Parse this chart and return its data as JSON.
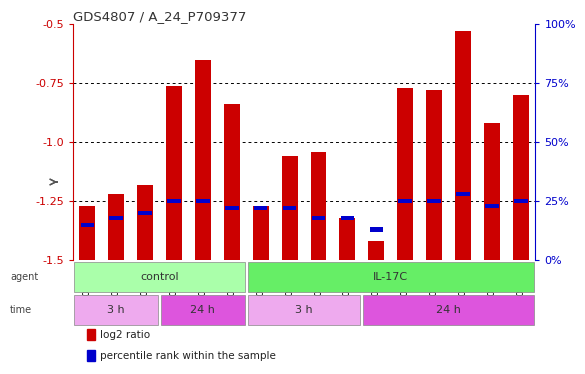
{
  "title": "GDS4807 / A_24_P709377",
  "samples": [
    "GSM808637",
    "GSM808642",
    "GSM808643",
    "GSM808634",
    "GSM808645",
    "GSM808646",
    "GSM808633",
    "GSM808638",
    "GSM808640",
    "GSM808641",
    "GSM808644",
    "GSM808635",
    "GSM808636",
    "GSM808639",
    "GSM808647",
    "GSM808648"
  ],
  "log2_ratio": [
    -1.27,
    -1.22,
    -1.18,
    -0.76,
    -0.65,
    -0.84,
    -1.27,
    -1.06,
    -1.04,
    -1.32,
    -1.42,
    -0.77,
    -0.78,
    -0.53,
    -0.92,
    -0.8
  ],
  "percentile": [
    15,
    18,
    20,
    25,
    25,
    22,
    22,
    22,
    18,
    18,
    13,
    25,
    25,
    28,
    23,
    25
  ],
  "ylim_left": [
    -1.5,
    -0.5
  ],
  "yticks_left": [
    -1.5,
    -1.25,
    -1.0,
    -0.75,
    -0.5
  ],
  "yticks_right_pct": [
    0,
    25,
    50,
    75,
    100
  ],
  "bar_color": "#cc0000",
  "marker_color": "#0000cc",
  "agent_groups": [
    {
      "label": "control",
      "start": 0,
      "end": 6,
      "color": "#aaffaa"
    },
    {
      "label": "IL-17C",
      "start": 6,
      "end": 16,
      "color": "#66ee66"
    }
  ],
  "time_groups": [
    {
      "label": "3 h",
      "start": 0,
      "end": 3,
      "color": "#eeaaee"
    },
    {
      "label": "24 h",
      "start": 3,
      "end": 6,
      "color": "#dd55dd"
    },
    {
      "label": "3 h",
      "start": 6,
      "end": 10,
      "color": "#eeaaee"
    },
    {
      "label": "24 h",
      "start": 10,
      "end": 16,
      "color": "#dd55dd"
    }
  ],
  "legend_items": [
    {
      "label": "log2 ratio",
      "color": "#cc0000"
    },
    {
      "label": "percentile rank within the sample",
      "color": "#0000cc"
    }
  ],
  "bg_color": "#ffffff",
  "plot_bg": "#ffffff",
  "title_color": "#333333"
}
